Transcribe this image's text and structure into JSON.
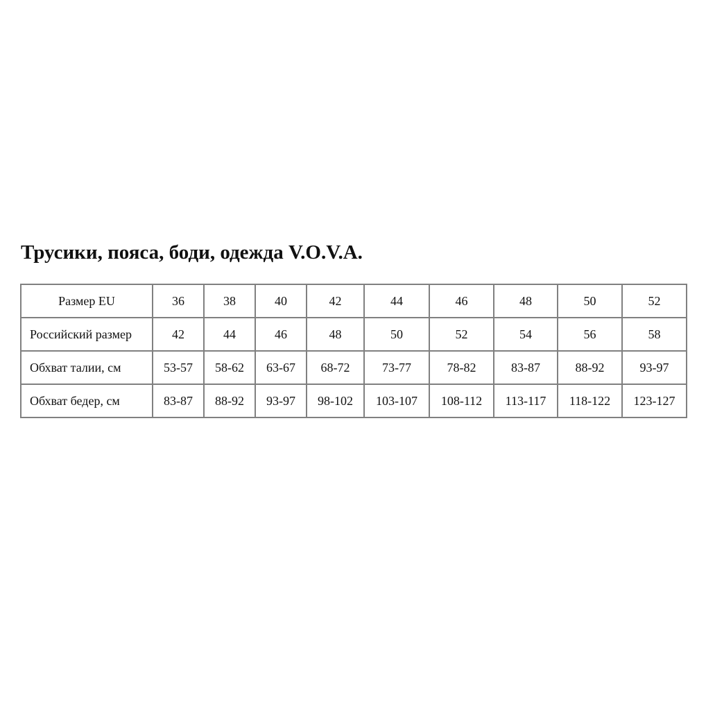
{
  "title": "Трусики, пояса, боди, одежда V.O.V.A.",
  "table": {
    "rows": [
      {
        "label": "Размер EU",
        "values": [
          "36",
          "38",
          "40",
          "42",
          "44",
          "46",
          "48",
          "50",
          "52"
        ]
      },
      {
        "label": "Российский размер",
        "values": [
          "42",
          "44",
          "46",
          "48",
          "50",
          "52",
          "54",
          "56",
          "58"
        ]
      },
      {
        "label": "Обхват талии, см",
        "values": [
          "53-57",
          "58-62",
          "63-67",
          "68-72",
          "73-77",
          "78-82",
          "83-87",
          "88-92",
          "93-97"
        ]
      },
      {
        "label": "Обхват бедер, см",
        "values": [
          "83-87",
          "88-92",
          "93-97",
          "98-102",
          "103-107",
          "108-112",
          "113-117",
          "118-122",
          "123-127"
        ]
      }
    ]
  }
}
